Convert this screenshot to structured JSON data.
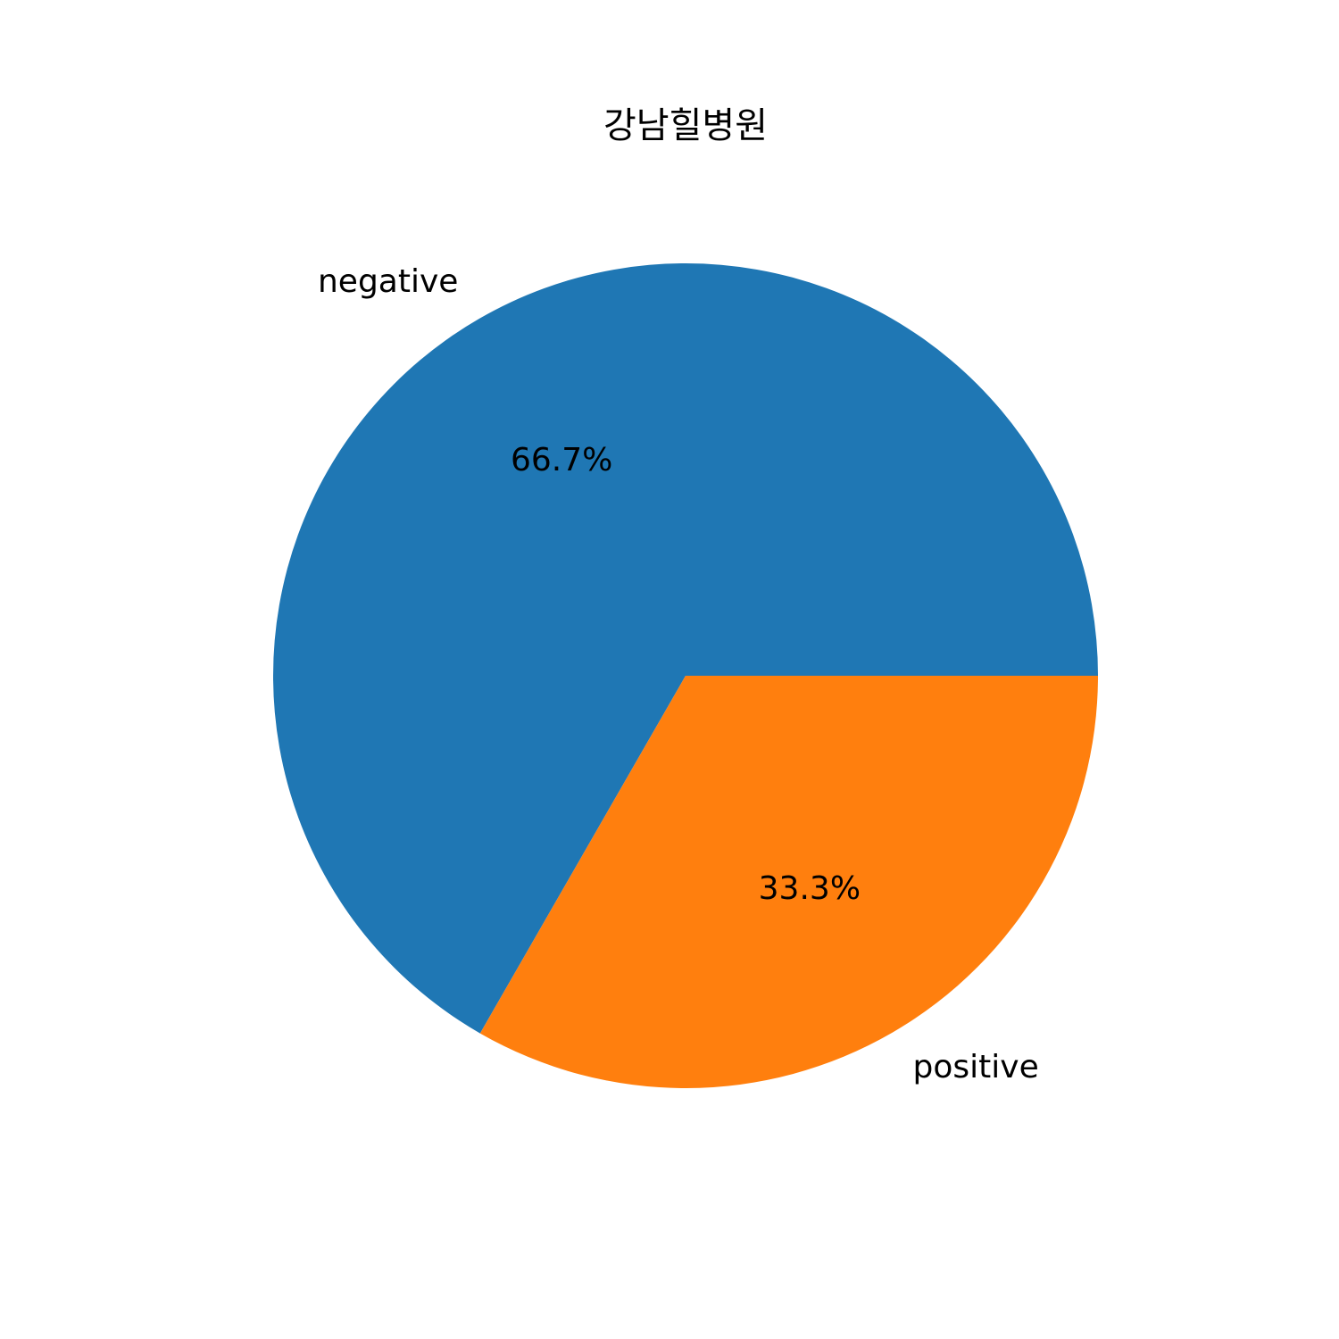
{
  "chart_data": {
    "type": "pie",
    "title": "강남힐병원",
    "categories": [
      "negative",
      "positive"
    ],
    "values": [
      66.7,
      33.3
    ],
    "value_labels": [
      "66.7%",
      "33.3%"
    ],
    "colors": [
      "#1f77b4",
      "#ff7f0e"
    ],
    "start_angle_deg": 0,
    "direction": "counterclockwise",
    "legend": "none"
  }
}
